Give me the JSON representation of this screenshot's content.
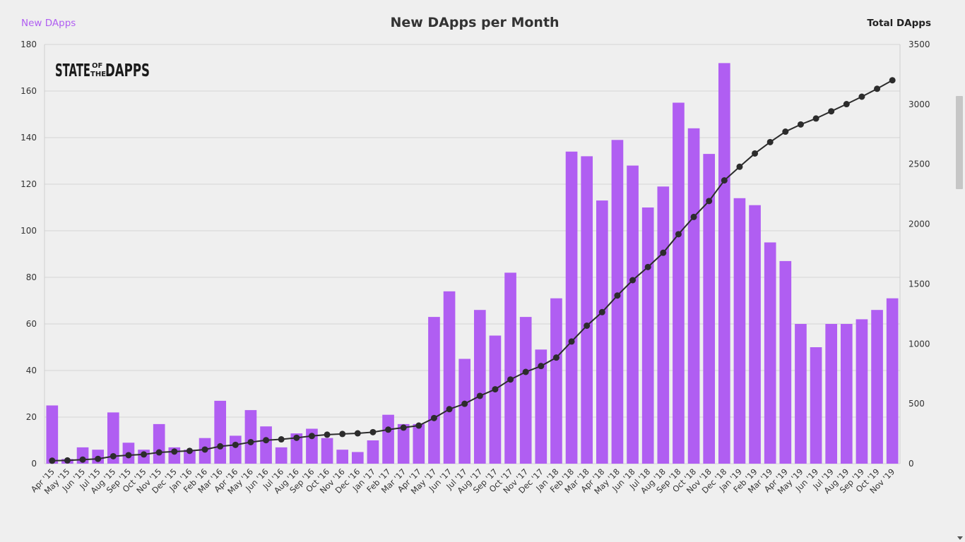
{
  "chart_data": {
    "type": "bar",
    "title": "New DApps per Month",
    "legend_left_label": "New DApps",
    "legend_right_label": "Total DApps",
    "logo": {
      "line1": "STATE",
      "of": "OF",
      "the": "THE",
      "line2": "DAPPS"
    },
    "categories": [
      "Apr '15",
      "May '15",
      "Jun '15",
      "Jul '15",
      "Aug '15",
      "Sep '15",
      "Oct '15",
      "Nov '15",
      "Dec '15",
      "Jan '16",
      "Feb '16",
      "Mar '16",
      "Apr '16",
      "May '16",
      "Jun '16",
      "Jul '16",
      "Aug '16",
      "Sep '16",
      "Oct '16",
      "Nov '16",
      "Dec '16",
      "Jan '17",
      "Feb '17",
      "Mar '17",
      "Apr '17",
      "May '17",
      "Jun '17",
      "Jul '17",
      "Aug '17",
      "Sep '17",
      "Oct '17",
      "Nov '17",
      "Dec '17",
      "Jan '18",
      "Feb '18",
      "Mar '18",
      "Apr '18",
      "May '18",
      "Jun '18",
      "Jul '18",
      "Aug '18",
      "Sep '18",
      "Oct '18",
      "Nov '18",
      "Dec '18",
      "Jan '19",
      "Feb '19",
      "Mar '19",
      "Apr '19",
      "May '19",
      "Jun '19",
      "Jul '19",
      "Aug '19",
      "Sep '19",
      "Oct '19",
      "Nov '19"
    ],
    "series": [
      {
        "name": "New DApps",
        "type": "bar",
        "axis": "left",
        "color": "#b05ef2",
        "values": [
          25,
          2,
          7,
          6,
          22,
          9,
          6,
          17,
          7,
          6,
          11,
          27,
          12,
          23,
          16,
          7,
          13,
          15,
          11,
          6,
          5,
          10,
          21,
          17,
          17,
          63,
          74,
          45,
          66,
          55,
          82,
          63,
          49,
          71,
          134,
          132,
          113,
          139,
          128,
          110,
          119,
          155,
          144,
          133,
          172,
          114,
          111,
          95,
          87,
          60,
          50,
          60,
          60,
          62,
          66,
          71
        ]
      },
      {
        "name": "Total DApps",
        "type": "line",
        "axis": "right",
        "color": "#2c2c2c",
        "values": [
          25,
          27,
          34,
          40,
          62,
          71,
          77,
          94,
          101,
          107,
          118,
          145,
          157,
          180,
          196,
          203,
          216,
          231,
          242,
          248,
          253,
          263,
          284,
          301,
          318,
          381,
          455,
          500,
          566,
          621,
          703,
          766,
          815,
          886,
          1020,
          1152,
          1265,
          1404,
          1532,
          1642,
          1761,
          1916,
          2060,
          2193,
          2365,
          2479,
          2590,
          2685,
          2772,
          2832,
          2882,
          2942,
          3002,
          3064,
          3130,
          3201
        ]
      }
    ],
    "ylim_left": [
      0,
      180
    ],
    "yticks_left": [
      0,
      20,
      40,
      60,
      80,
      100,
      120,
      140,
      160,
      180
    ],
    "ylim_right": [
      0,
      3500
    ],
    "yticks_right": [
      0,
      500,
      1000,
      1500,
      2000,
      2500,
      3000,
      3500
    ],
    "grid": true
  }
}
